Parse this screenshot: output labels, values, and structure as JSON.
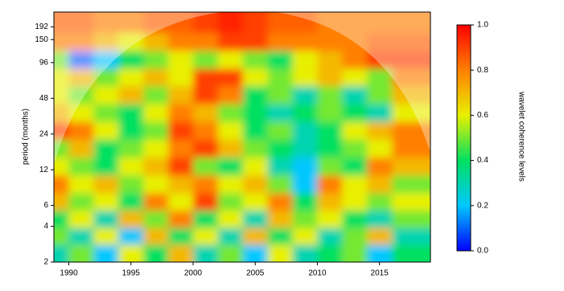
{
  "chart_data": {
    "type": "heatmap",
    "y_label": "period (months)",
    "colorbar_label": "wavelet coherence levels",
    "xlim": [
      1988.8,
      2019.1
    ],
    "xticks": [
      1990,
      1995,
      2000,
      2005,
      2010,
      2015
    ],
    "ylim": [
      2,
      256
    ],
    "yticks": [
      2,
      4,
      6,
      12,
      24,
      48,
      96,
      150,
      192
    ],
    "log_y": true,
    "zlim": [
      0,
      1
    ],
    "zticks": [
      {
        "value": 0,
        "label": "0.0"
      },
      0.2,
      0.4,
      0.6,
      0.8,
      {
        "value": 1,
        "label": "1.0"
      }
    ],
    "colormap": [
      "#0000ff",
      "#00c8ff",
      "#00e060",
      "#e8f000",
      "#ff8000",
      "#ff0000"
    ],
    "x": [
      1989,
      1991,
      1993,
      1995,
      1997,
      1999,
      2001,
      2003,
      2005,
      2007,
      2009,
      2011,
      2013,
      2015,
      2017
    ],
    "y": [
      2.4,
      3.3,
      4.6,
      6.5,
      9,
      13,
      18,
      26,
      36,
      52,
      72,
      102,
      144,
      204
    ],
    "z": [
      [
        0.3,
        0.5,
        0.2,
        0.6,
        0.4,
        0.7,
        0.3,
        0.5,
        0.2,
        0.6,
        0.3,
        0.4,
        0.5,
        0.2,
        0.4
      ],
      [
        0.5,
        0.3,
        0.6,
        0.2,
        0.7,
        0.4,
        0.6,
        0.3,
        0.7,
        0.4,
        0.6,
        0.3,
        0.5,
        0.7,
        0.3
      ],
      [
        0.4,
        0.6,
        0.3,
        0.7,
        0.5,
        0.8,
        0.4,
        0.6,
        0.3,
        0.7,
        0.5,
        0.6,
        0.4,
        0.3,
        0.5
      ],
      [
        0.7,
        0.5,
        0.6,
        0.4,
        0.8,
        0.6,
        0.9,
        0.5,
        0.6,
        0.8,
        0.4,
        0.7,
        0.6,
        0.5,
        0.6
      ],
      [
        0.8,
        0.6,
        0.7,
        0.5,
        0.6,
        0.7,
        0.8,
        0.6,
        0.7,
        0.5,
        0.2,
        0.8,
        0.6,
        0.7,
        0.5
      ],
      [
        0.6,
        0.5,
        0.4,
        0.6,
        0.7,
        0.9,
        0.5,
        0.4,
        0.6,
        0.3,
        0.2,
        0.5,
        0.4,
        0.8,
        0.7
      ],
      [
        0.5,
        0.7,
        0.4,
        0.5,
        0.6,
        0.8,
        0.9,
        0.7,
        0.5,
        0.4,
        0.3,
        0.4,
        0.5,
        0.6,
        0.8
      ],
      [
        0.9,
        0.8,
        0.6,
        0.4,
        0.5,
        0.9,
        0.8,
        0.6,
        0.4,
        0.5,
        0.3,
        0.4,
        0.6,
        0.7,
        0.8
      ],
      [
        0.7,
        0.6,
        0.5,
        0.4,
        0.6,
        0.8,
        0.7,
        0.5,
        0.4,
        0.3,
        0.4,
        0.5,
        0.4,
        0.3,
        0.6
      ],
      [
        0.6,
        0.5,
        0.6,
        0.7,
        0.5,
        0.7,
        0.9,
        0.8,
        0.4,
        0.5,
        0.3,
        0.5,
        0.3,
        0.5,
        0.7
      ],
      [
        0.6,
        0.7,
        0.5,
        0.6,
        0.7,
        0.6,
        0.9,
        0.9,
        0.6,
        0.5,
        0.6,
        0.7,
        0.6,
        0.5,
        0.8
      ],
      [
        0.5,
        0.1,
        0.2,
        0.4,
        0.5,
        0.6,
        0.5,
        0.6,
        0.5,
        0.4,
        0.6,
        0.7,
        0.8,
        0.9,
        0.9
      ],
      [
        0.8,
        0.8,
        0.7,
        0.6,
        0.7,
        0.8,
        0.8,
        0.9,
        0.9,
        0.8,
        0.8,
        0.8,
        0.8,
        0.85,
        0.85
      ],
      [
        0.85,
        0.85,
        0.8,
        0.8,
        0.85,
        0.85,
        0.9,
        0.95,
        0.9,
        0.85,
        0.85,
        0.8,
        0.8,
        0.8,
        0.8
      ]
    ]
  }
}
